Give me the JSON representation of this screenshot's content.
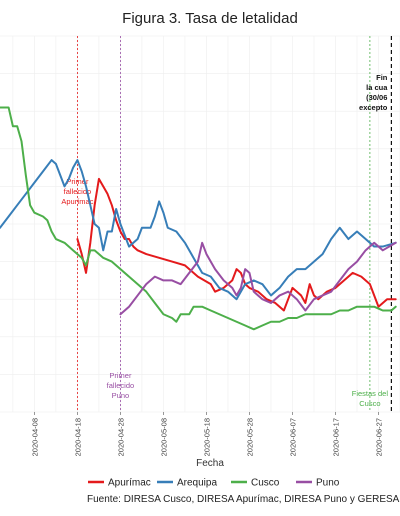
{
  "chart_data": {
    "type": "line",
    "title": "Figura 3. Tasa de letalidad",
    "xlabel": "Fecha",
    "ylabel": "",
    "caption": "Fuente: DIRESA Cusco, DIRESA Apurímac, DIRESA Puno y GERESA",
    "x_ticks": [
      "2020-04-08",
      "2020-04-18",
      "2020-04-28",
      "2020-05-08",
      "2020-05-18",
      "2020-05-28",
      "2020-06-07",
      "2020-06-17",
      "2020-06-27"
    ],
    "xlim": [
      "2020-03-31",
      "2020-07-02"
    ],
    "ylim": [
      0,
      10
    ],
    "grid": true,
    "legend_position": "bottom",
    "series": [
      {
        "name": "Apurímac",
        "color": "#e41a1c",
        "points": [
          [
            "2020-04-18",
            4.6
          ],
          [
            "2020-04-19",
            4.2
          ],
          [
            "2020-04-20",
            3.7
          ],
          [
            "2020-04-21",
            4.5
          ],
          [
            "2020-04-22",
            5.5
          ],
          [
            "2020-04-23",
            6.2
          ],
          [
            "2020-04-24",
            6.0
          ],
          [
            "2020-04-25",
            5.8
          ],
          [
            "2020-04-26",
            5.5
          ],
          [
            "2020-04-27",
            5.1
          ],
          [
            "2020-04-28",
            4.8
          ],
          [
            "2020-04-29",
            4.6
          ],
          [
            "2020-04-30",
            4.6
          ],
          [
            "2020-05-01",
            4.4
          ],
          [
            "2020-05-02",
            4.3
          ],
          [
            "2020-05-04",
            4.2
          ],
          [
            "2020-05-07",
            4.1
          ],
          [
            "2020-05-10",
            4.0
          ],
          [
            "2020-05-13",
            3.9
          ],
          [
            "2020-05-16",
            3.6
          ],
          [
            "2020-05-19",
            3.4
          ],
          [
            "2020-05-20",
            3.2
          ],
          [
            "2020-05-22",
            3.3
          ],
          [
            "2020-05-24",
            3.5
          ],
          [
            "2020-05-25",
            3.8
          ],
          [
            "2020-05-26",
            3.7
          ],
          [
            "2020-05-27",
            3.4
          ],
          [
            "2020-05-28",
            3.3
          ],
          [
            "2020-05-30",
            3.2
          ],
          [
            "2020-06-01",
            3.0
          ],
          [
            "2020-06-03",
            2.9
          ],
          [
            "2020-06-05",
            2.7
          ],
          [
            "2020-06-06",
            3.0
          ],
          [
            "2020-06-07",
            3.3
          ],
          [
            "2020-06-08",
            3.2
          ],
          [
            "2020-06-09",
            3.1
          ],
          [
            "2020-06-10",
            2.9
          ],
          [
            "2020-06-11",
            3.4
          ],
          [
            "2020-06-12",
            3.1
          ],
          [
            "2020-06-13",
            3.0
          ],
          [
            "2020-06-15",
            3.2
          ],
          [
            "2020-06-17",
            3.3
          ],
          [
            "2020-06-19",
            3.5
          ],
          [
            "2020-06-21",
            3.7
          ],
          [
            "2020-06-23",
            3.6
          ],
          [
            "2020-06-25",
            3.4
          ],
          [
            "2020-06-27",
            2.8
          ],
          [
            "2020-06-29",
            3.0
          ],
          [
            "2020-07-01",
            3.0
          ]
        ]
      },
      {
        "name": "Arequipa",
        "color": "#377eb8",
        "points": [
          [
            "2020-03-31",
            4.9
          ],
          [
            "2020-04-02",
            5.2
          ],
          [
            "2020-04-04",
            5.5
          ],
          [
            "2020-04-06",
            5.8
          ],
          [
            "2020-04-08",
            6.1
          ],
          [
            "2020-04-10",
            6.4
          ],
          [
            "2020-04-12",
            6.7
          ],
          [
            "2020-04-13",
            6.6
          ],
          [
            "2020-04-14",
            6.3
          ],
          [
            "2020-04-15",
            6.0
          ],
          [
            "2020-04-16",
            6.2
          ],
          [
            "2020-04-17",
            6.5
          ],
          [
            "2020-04-18",
            6.7
          ],
          [
            "2020-04-19",
            6.4
          ],
          [
            "2020-04-20",
            6.0
          ],
          [
            "2020-04-21",
            5.5
          ],
          [
            "2020-04-22",
            5.0
          ],
          [
            "2020-04-23",
            4.9
          ],
          [
            "2020-04-24",
            4.3
          ],
          [
            "2020-04-25",
            4.8
          ],
          [
            "2020-04-26",
            4.8
          ],
          [
            "2020-04-27",
            5.4
          ],
          [
            "2020-04-28",
            5.0
          ],
          [
            "2020-04-29",
            4.7
          ],
          [
            "2020-04-30",
            4.4
          ],
          [
            "2020-05-02",
            4.6
          ],
          [
            "2020-05-03",
            4.9
          ],
          [
            "2020-05-05",
            4.9
          ],
          [
            "2020-05-06",
            5.2
          ],
          [
            "2020-05-07",
            5.6
          ],
          [
            "2020-05-08",
            5.3
          ],
          [
            "2020-05-09",
            4.9
          ],
          [
            "2020-05-11",
            4.8
          ],
          [
            "2020-05-13",
            4.5
          ],
          [
            "2020-05-15",
            4.1
          ],
          [
            "2020-05-17",
            3.7
          ],
          [
            "2020-05-19",
            3.6
          ],
          [
            "2020-05-21",
            3.3
          ],
          [
            "2020-05-23",
            3.2
          ],
          [
            "2020-05-25",
            3.0
          ],
          [
            "2020-05-27",
            3.4
          ],
          [
            "2020-05-29",
            3.5
          ],
          [
            "2020-05-31",
            3.4
          ],
          [
            "2020-06-02",
            3.1
          ],
          [
            "2020-06-04",
            3.3
          ],
          [
            "2020-06-06",
            3.6
          ],
          [
            "2020-06-08",
            3.8
          ],
          [
            "2020-06-10",
            3.8
          ],
          [
            "2020-06-12",
            4.0
          ],
          [
            "2020-06-14",
            4.2
          ],
          [
            "2020-06-16",
            4.6
          ],
          [
            "2020-06-18",
            4.9
          ],
          [
            "2020-06-20",
            4.6
          ],
          [
            "2020-06-22",
            4.8
          ],
          [
            "2020-06-24",
            4.6
          ],
          [
            "2020-06-26",
            4.4
          ],
          [
            "2020-06-28",
            4.4
          ],
          [
            "2020-07-01",
            4.5
          ]
        ]
      },
      {
        "name": "Cusco",
        "color": "#4daf4a",
        "points": [
          [
            "2020-03-31",
            8.1
          ],
          [
            "2020-04-02",
            8.1
          ],
          [
            "2020-04-03",
            7.6
          ],
          [
            "2020-04-04",
            7.6
          ],
          [
            "2020-04-05",
            7.2
          ],
          [
            "2020-04-06",
            6.3
          ],
          [
            "2020-04-07",
            5.5
          ],
          [
            "2020-04-08",
            5.3
          ],
          [
            "2020-04-10",
            5.2
          ],
          [
            "2020-04-11",
            5.1
          ],
          [
            "2020-04-12",
            4.8
          ],
          [
            "2020-04-13",
            4.6
          ],
          [
            "2020-04-15",
            4.5
          ],
          [
            "2020-04-17",
            4.3
          ],
          [
            "2020-04-18",
            4.2
          ],
          [
            "2020-04-19",
            4.1
          ],
          [
            "2020-04-20",
            3.9
          ],
          [
            "2020-04-21",
            4.3
          ],
          [
            "2020-04-22",
            4.3
          ],
          [
            "2020-04-24",
            4.1
          ],
          [
            "2020-04-26",
            4.0
          ],
          [
            "2020-04-28",
            3.8
          ],
          [
            "2020-04-30",
            3.6
          ],
          [
            "2020-05-02",
            3.4
          ],
          [
            "2020-05-04",
            3.2
          ],
          [
            "2020-05-06",
            2.9
          ],
          [
            "2020-05-08",
            2.6
          ],
          [
            "2020-05-10",
            2.5
          ],
          [
            "2020-05-11",
            2.4
          ],
          [
            "2020-05-12",
            2.6
          ],
          [
            "2020-05-14",
            2.6
          ],
          [
            "2020-05-15",
            2.8
          ],
          [
            "2020-05-17",
            2.8
          ],
          [
            "2020-05-19",
            2.7
          ],
          [
            "2020-05-21",
            2.6
          ],
          [
            "2020-05-23",
            2.5
          ],
          [
            "2020-05-25",
            2.4
          ],
          [
            "2020-05-27",
            2.3
          ],
          [
            "2020-05-29",
            2.2
          ],
          [
            "2020-05-31",
            2.3
          ],
          [
            "2020-06-02",
            2.4
          ],
          [
            "2020-06-04",
            2.4
          ],
          [
            "2020-06-06",
            2.5
          ],
          [
            "2020-06-08",
            2.5
          ],
          [
            "2020-06-10",
            2.6
          ],
          [
            "2020-06-12",
            2.6
          ],
          [
            "2020-06-14",
            2.6
          ],
          [
            "2020-06-16",
            2.6
          ],
          [
            "2020-06-18",
            2.7
          ],
          [
            "2020-06-20",
            2.7
          ],
          [
            "2020-06-22",
            2.8
          ],
          [
            "2020-06-24",
            2.8
          ],
          [
            "2020-06-26",
            2.8
          ],
          [
            "2020-06-28",
            2.7
          ],
          [
            "2020-06-30",
            2.7
          ],
          [
            "2020-07-01",
            2.8
          ]
        ]
      },
      {
        "name": "Puno",
        "color": "#984ea3",
        "points": [
          [
            "2020-04-28",
            2.6
          ],
          [
            "2020-04-30",
            2.8
          ],
          [
            "2020-05-02",
            3.1
          ],
          [
            "2020-05-04",
            3.4
          ],
          [
            "2020-05-06",
            3.6
          ],
          [
            "2020-05-08",
            3.5
          ],
          [
            "2020-05-10",
            3.5
          ],
          [
            "2020-05-12",
            3.4
          ],
          [
            "2020-05-14",
            3.7
          ],
          [
            "2020-05-16",
            4.0
          ],
          [
            "2020-05-17",
            4.5
          ],
          [
            "2020-05-18",
            4.2
          ],
          [
            "2020-05-20",
            3.8
          ],
          [
            "2020-05-22",
            3.5
          ],
          [
            "2020-05-24",
            3.3
          ],
          [
            "2020-05-25",
            3.1
          ],
          [
            "2020-05-26",
            3.3
          ],
          [
            "2020-05-27",
            3.8
          ],
          [
            "2020-05-28",
            3.7
          ],
          [
            "2020-05-29",
            3.2
          ],
          [
            "2020-05-31",
            3.0
          ],
          [
            "2020-06-02",
            2.9
          ],
          [
            "2020-06-04",
            3.1
          ],
          [
            "2020-06-06",
            3.2
          ],
          [
            "2020-06-08",
            3.0
          ],
          [
            "2020-06-10",
            2.7
          ],
          [
            "2020-06-12",
            3.0
          ],
          [
            "2020-06-14",
            3.1
          ],
          [
            "2020-06-16",
            3.2
          ],
          [
            "2020-06-18",
            3.5
          ],
          [
            "2020-06-20",
            3.8
          ],
          [
            "2020-06-22",
            4.0
          ],
          [
            "2020-06-24",
            4.3
          ],
          [
            "2020-06-26",
            4.5
          ],
          [
            "2020-06-28",
            4.3
          ],
          [
            "2020-07-01",
            4.5
          ]
        ]
      }
    ],
    "annotations": [
      {
        "label": "Primer fallecido Apurímac",
        "date": "2020-04-18",
        "color": "#e41a1c",
        "lines": [
          "Primer",
          "fallecido",
          "Apurímac"
        ],
        "style": "dotted"
      },
      {
        "label": "Primer fallecido Puno",
        "date": "2020-04-28",
        "color": "#984ea3",
        "lines": [
          "Primer",
          "fallecido",
          "Puno"
        ],
        "style": "dotted"
      },
      {
        "label": "Fiestas del Cusco",
        "date": "2020-06-25",
        "color": "#4daf4a",
        "lines": [
          "Fiestas del",
          "Cusco"
        ],
        "style": "dotted"
      },
      {
        "label": "Fin ... la cua... (30/06... excepto ...",
        "date": "2020-06-30",
        "color": "#111111",
        "lines": [
          "Fin",
          "la cua",
          "(30/06",
          "excepto"
        ],
        "style": "dashed"
      }
    ]
  }
}
